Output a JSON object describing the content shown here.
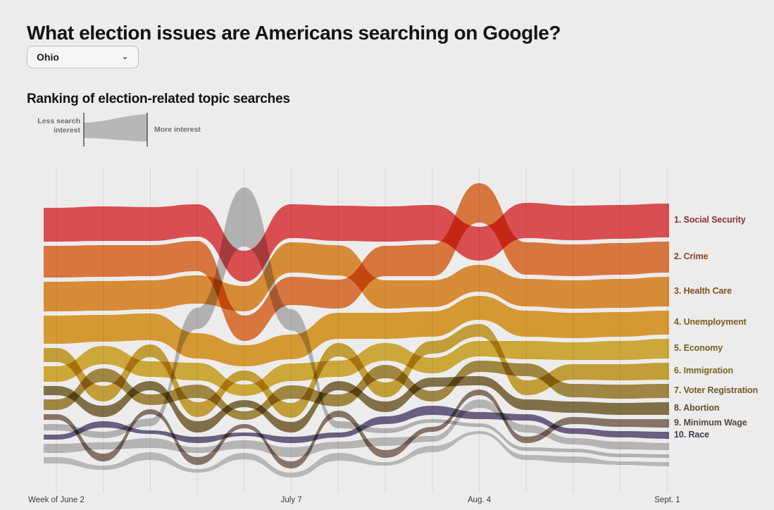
{
  "header": {
    "title": "What election issues are Americans searching on Google?"
  },
  "controls": {
    "state_select": {
      "value": "Ohio"
    }
  },
  "section": {
    "subtitle": "Ranking of election-related topic searches"
  },
  "legend": {
    "less_label": "Less search\ninterest",
    "more_label": "More interest",
    "shape_color": "#b7b7b7"
  },
  "chart_data": {
    "type": "area-bump",
    "description": "Weekly ranking of election-related Google search topics; ribbon thickness encodes search interest",
    "weeks": 14,
    "gridlines": 14,
    "top_y": [
      295,
      293,
      294,
      290,
      266,
      290,
      292,
      293,
      291,
      260,
      288,
      292,
      291,
      289
    ],
    "x_axis": {
      "ticks": [
        {
          "label": "Week of June 2",
          "week": 0
        },
        {
          "label": "July 7",
          "week": 5
        },
        {
          "label": "Aug. 4",
          "week": 9
        },
        {
          "label": "Sept. 1",
          "week": 13
        }
      ]
    },
    "topics": [
      {
        "label": "1. Social Security",
        "name": "Social Security",
        "color": "#e84b4e",
        "label_color": "#8c3034",
        "ranks": [
          1,
          1,
          1,
          1,
          1,
          1,
          1,
          1,
          1,
          2,
          1,
          1,
          1,
          1
        ],
        "widths": [
          48,
          49,
          48,
          46,
          44,
          48,
          50,
          50,
          50,
          48,
          50,
          49,
          48,
          48
        ]
      },
      {
        "label": "2. Crime",
        "name": "Crime",
        "color": "#e8793b",
        "label_color": "#8a4523",
        "ranks": [
          2,
          2,
          2,
          2,
          3,
          3,
          3,
          2,
          2,
          1,
          2,
          2,
          2,
          2
        ],
        "widths": [
          45,
          45,
          44,
          43,
          36,
          40,
          41,
          43,
          45,
          56,
          46,
          45,
          45,
          44
        ]
      },
      {
        "label": "3. Health Care",
        "name": "Health Care",
        "color": "#e6912f",
        "label_color": "#7d4e1d",
        "ranks": [
          3,
          3,
          3,
          3,
          2,
          2,
          2,
          3,
          3,
          3,
          3,
          3,
          3,
          3
        ],
        "widths": [
          42,
          42,
          41,
          40,
          36,
          43,
          43,
          40,
          38,
          38,
          39,
          40,
          41,
          42
        ]
      },
      {
        "label": "4. Unemployment",
        "name": "Unemployment",
        "color": "#e5a02d",
        "label_color": "#7b5b1b",
        "ranks": [
          4,
          4,
          4,
          4,
          4,
          4,
          4,
          4,
          4,
          4,
          4,
          4,
          4,
          4
        ],
        "widths": [
          40,
          38,
          38,
          36,
          30,
          35,
          37,
          37,
          36,
          34,
          37,
          36,
          35,
          34
        ]
      },
      {
        "label": "5. Economy",
        "name": "Economy",
        "color": "#d9b233",
        "label_color": "#77611c",
        "ranks": [
          6,
          5,
          6,
          5,
          6,
          5,
          6,
          5,
          6,
          6,
          5,
          5,
          5,
          5
        ],
        "widths": [
          22,
          26,
          22,
          25,
          16,
          25,
          23,
          25,
          22,
          22,
          26,
          25,
          27,
          28
        ]
      },
      {
        "label": "6. Immigration",
        "name": "Immigration",
        "color": "#cfa733",
        "label_color": "#7a6421",
        "ranks": [
          5,
          7,
          5,
          7,
          5,
          7,
          5,
          7,
          5,
          5,
          7,
          6,
          6,
          6
        ],
        "widths": [
          20,
          22,
          18,
          21,
          14,
          21,
          19,
          21,
          18,
          18,
          21,
          22,
          23,
          24
        ]
      },
      {
        "label": "7. Voter Registration",
        "name": "Voter Registration",
        "color": "#a78b3d",
        "label_color": "#6d5a25",
        "ranks": [
          8,
          6,
          8,
          6,
          8,
          6,
          8,
          6,
          8,
          7,
          6,
          7,
          7,
          7
        ],
        "widths": [
          15,
          19,
          15,
          19,
          12,
          19,
          17,
          19,
          15,
          16,
          18,
          19,
          20,
          20
        ]
      },
      {
        "label": "8. Abortion",
        "name": "Abortion",
        "color": "#857243",
        "label_color": "#5d502b",
        "ranks": [
          7,
          8,
          7,
          8,
          7,
          8,
          7,
          8,
          7,
          8,
          8,
          8,
          8,
          8
        ],
        "widths": [
          13,
          16,
          13,
          16,
          10,
          15,
          13,
          15,
          13,
          13,
          15,
          16,
          17,
          18
        ]
      },
      {
        "label": "9. Minimum Wage",
        "name": "Minimum Wage",
        "color": "#8b7668",
        "label_color": "#55483f",
        "ranks": [
          9,
          10,
          9,
          10,
          9,
          10,
          9,
          10,
          10,
          9,
          10,
          9,
          9,
          9
        ],
        "widths": [
          8,
          11,
          7,
          11,
          6,
          10,
          9,
          11,
          7,
          8,
          9,
          10,
          11,
          12
        ]
      },
      {
        "label": "10. Race",
        "name": "Race",
        "color": "#6a5f84",
        "label_color": "#413b50",
        "ranks": [
          10,
          9,
          10,
          9,
          10,
          9,
          10,
          9,
          9,
          10,
          9,
          10,
          10,
          10
        ],
        "widths": [
          7,
          9,
          5,
          9,
          5,
          9,
          7,
          11,
          13,
          10,
          9,
          8,
          9,
          10
        ]
      }
    ],
    "other_streams": [
      {
        "name": "unranked-topic-spike",
        "color": "#bdbdbd",
        "ranks": [
          9.5,
          9.5,
          9.5,
          3.5,
          0.5,
          3.5,
          9.5,
          9.5,
          9.5,
          10.5,
          10.5,
          10.5,
          10.5,
          10.5
        ],
        "widths": [
          9,
          9,
          11,
          30,
          84,
          30,
          10,
          7,
          5,
          5,
          5,
          5,
          5,
          5
        ]
      },
      {
        "name": "unranked-topic-mid",
        "color": "#c0c0c0",
        "ranks": [
          10.3,
          9.7,
          10.3,
          9.7,
          10.3,
          9.7,
          10.3,
          9.7,
          10.3,
          9.7,
          9.7,
          10.3,
          10.2,
          10.2
        ],
        "widths": [
          13,
          10,
          14,
          8,
          12,
          14,
          10,
          12,
          8,
          12,
          11,
          9,
          11,
          10
        ]
      },
      {
        "name": "unranked-topic-low",
        "color": "#c3c3c3",
        "ranks": [
          11.2,
          11.6,
          11.2,
          11.6,
          11.2,
          11.6,
          11.2,
          11.6,
          11.2,
          11.2,
          11.6,
          11.2,
          11.4,
          11.4
        ],
        "widths": [
          9,
          6,
          11,
          5,
          9,
          7,
          11,
          5,
          9,
          4,
          7,
          9,
          5,
          6
        ]
      }
    ]
  }
}
